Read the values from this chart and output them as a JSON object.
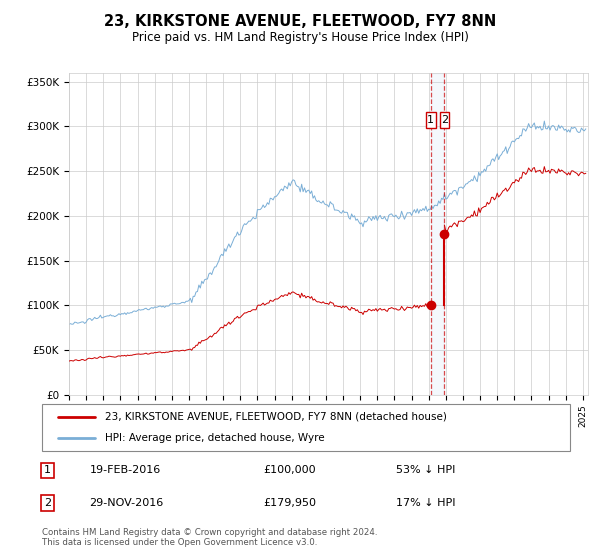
{
  "title": "23, KIRKSTONE AVENUE, FLEETWOOD, FY7 8NN",
  "subtitle": "Price paid vs. HM Land Registry's House Price Index (HPI)",
  "legend_line1": "23, KIRKSTONE AVENUE, FLEETWOOD, FY7 8NN (detached house)",
  "legend_line2": "HPI: Average price, detached house, Wyre",
  "red_color": "#cc0000",
  "blue_color": "#7aaed6",
  "transaction1_date": 2016.12,
  "transaction1_price": 100000,
  "transaction2_date": 2016.92,
  "transaction2_price": 179950,
  "transaction1_hpi_date": "19-FEB-2016",
  "transaction1_hpi_pct": "53% ↓ HPI",
  "transaction2_hpi_date": "29-NOV-2016",
  "transaction2_hpi_pct": "17% ↓ HPI",
  "ylim": [
    0,
    360000
  ],
  "xlim_start": 1995,
  "xlim_end": 2025.3,
  "footer": "Contains HM Land Registry data © Crown copyright and database right 2024.\nThis data is licensed under the Open Government Licence v3.0.",
  "background_color": "#ffffff",
  "grid_color": "#cccccc"
}
